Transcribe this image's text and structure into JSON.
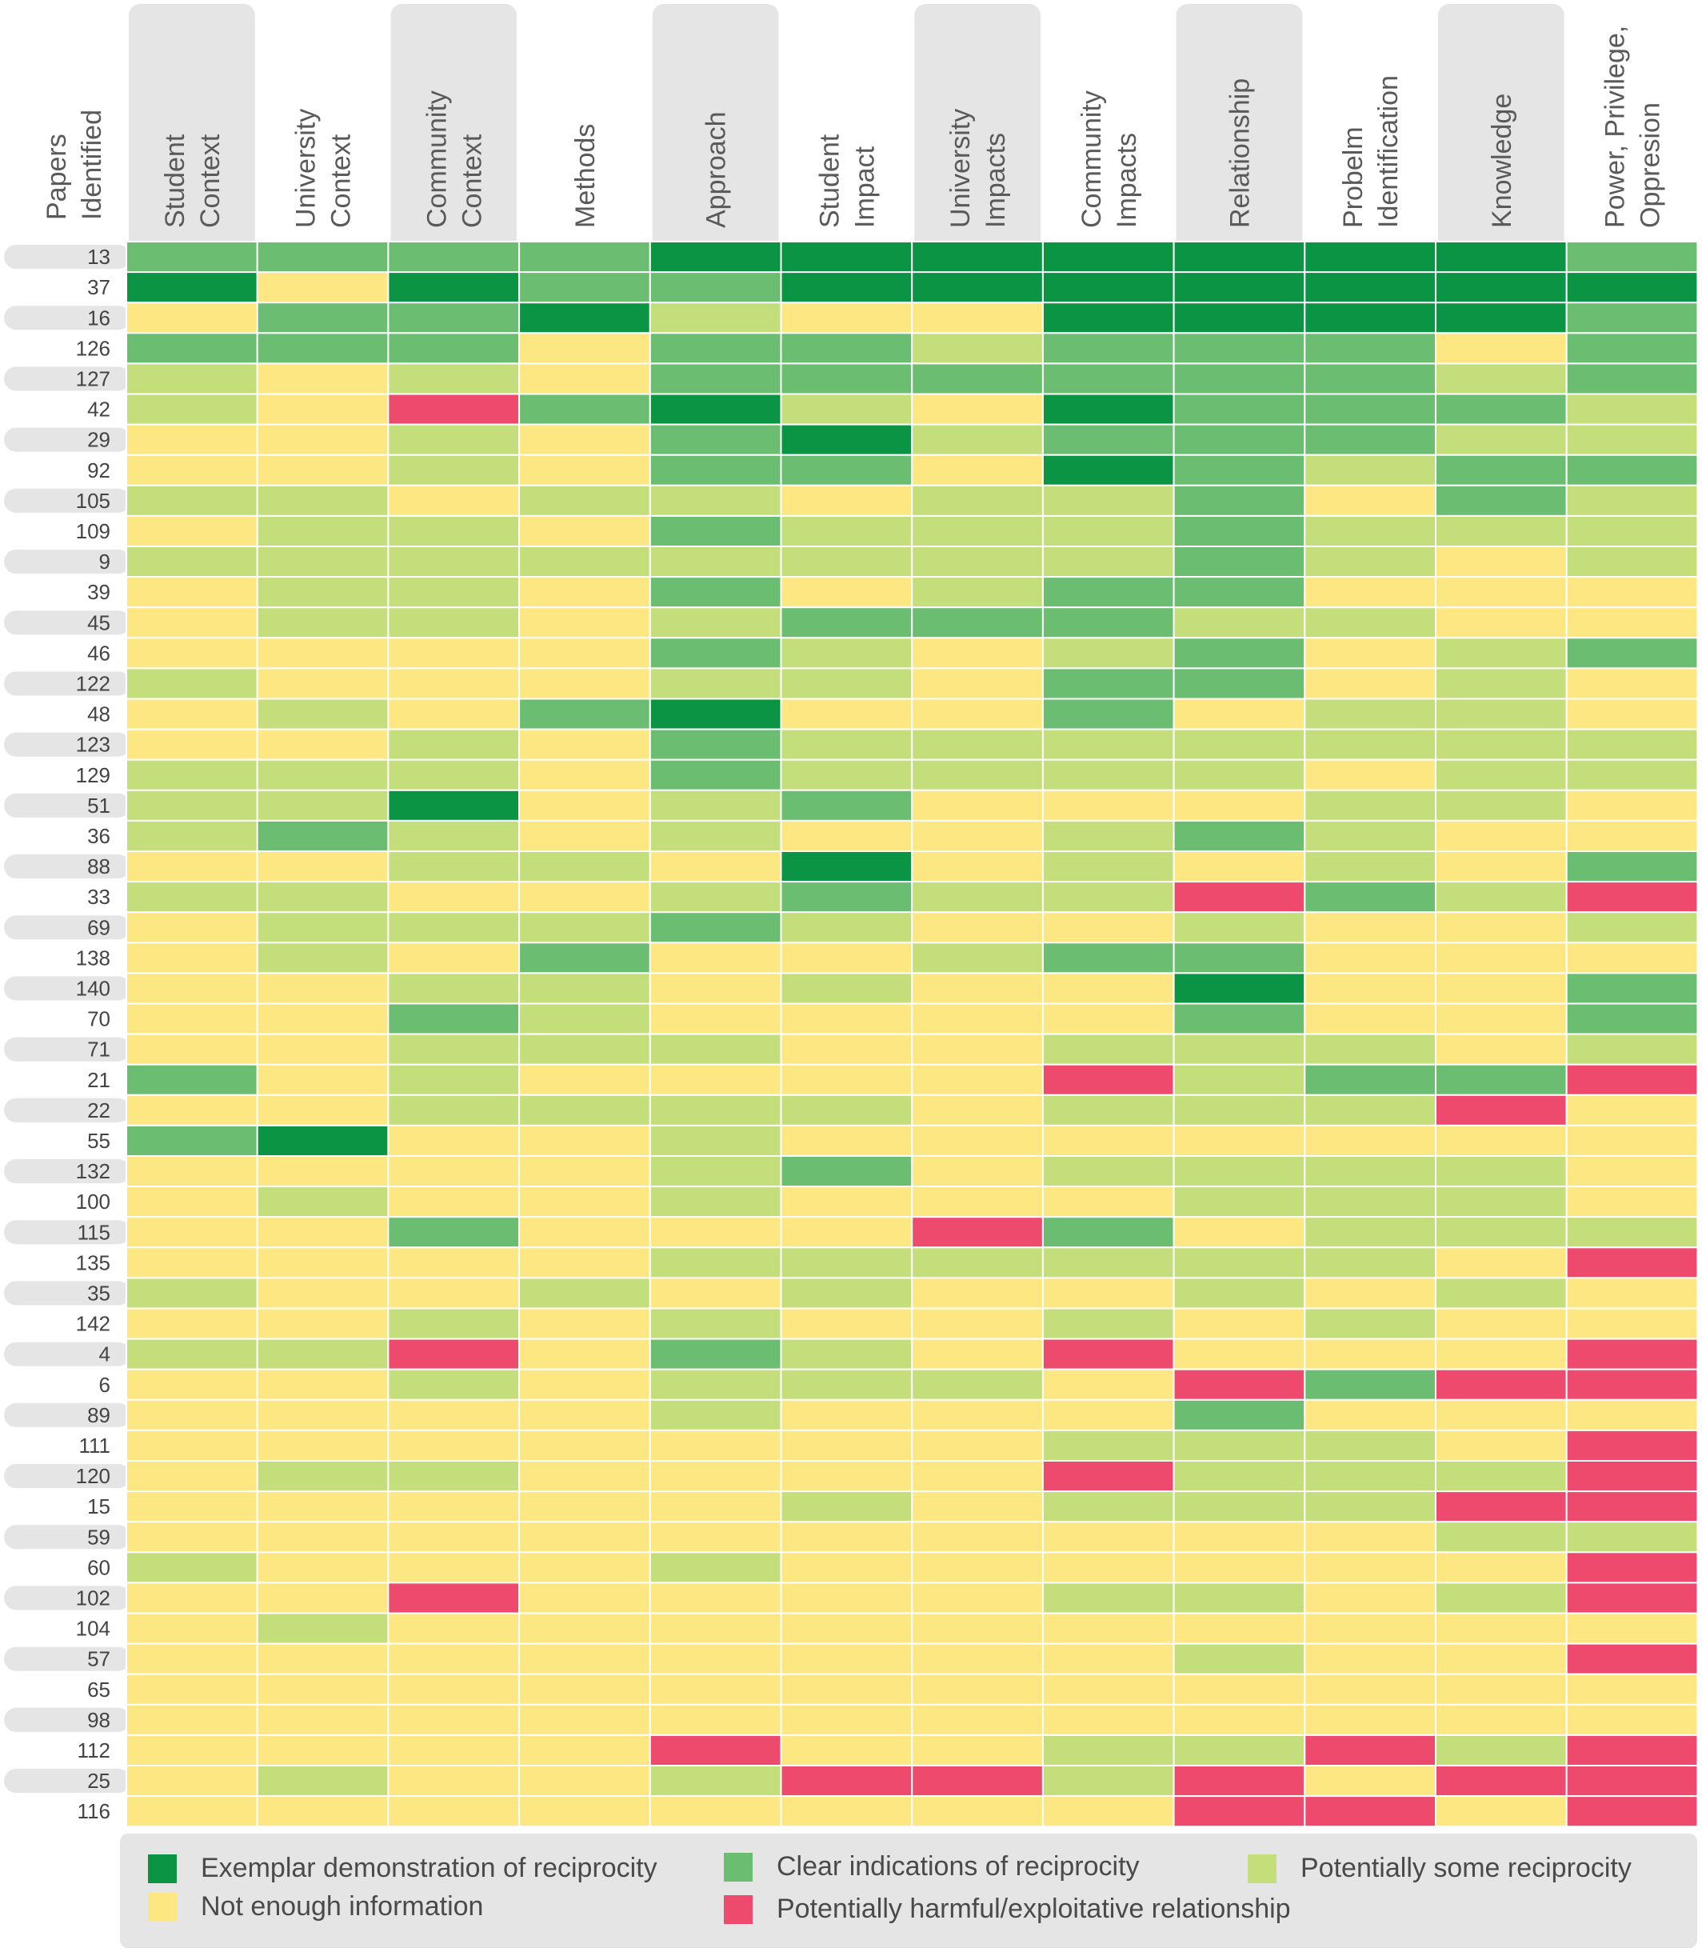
{
  "chart_data": {
    "type": "heatmap",
    "row_header": [
      "Papers",
      "Identified"
    ],
    "columns": [
      {
        "lines": [
          "Student",
          "Context"
        ],
        "tab": true
      },
      {
        "lines": [
          "University",
          "Context"
        ],
        "tab": false
      },
      {
        "lines": [
          "Community",
          "Context"
        ],
        "tab": true
      },
      {
        "lines": [
          "Methods"
        ],
        "tab": false
      },
      {
        "lines": [
          "Approach"
        ],
        "tab": true
      },
      {
        "lines": [
          "Student",
          "Impact"
        ],
        "tab": false
      },
      {
        "lines": [
          "University",
          "Impacts"
        ],
        "tab": true
      },
      {
        "lines": [
          "Community",
          "Impacts"
        ],
        "tab": false
      },
      {
        "lines": [
          "Relationship"
        ],
        "tab": true
      },
      {
        "lines": [
          "Probelm",
          "Identification"
        ],
        "tab": false
      },
      {
        "lines": [
          "Knowledge"
        ],
        "tab": true
      },
      {
        "lines": [
          "Power, Privilege,",
          "Oppresion"
        ],
        "tab": false
      }
    ],
    "rows": [
      "13",
      "37",
      "16",
      "126",
      "127",
      "42",
      "29",
      "92",
      "105",
      "109",
      "9",
      "39",
      "45",
      "46",
      "122",
      "48",
      "123",
      "129",
      "51",
      "36",
      "88",
      "33",
      "69",
      "138",
      "140",
      "70",
      "71",
      "21",
      "22",
      "55",
      "132",
      "100",
      "115",
      "135",
      "35",
      "142",
      "4",
      "6",
      "89",
      "111",
      "120",
      "15",
      "59",
      "60",
      "102",
      "104",
      "57",
      "65",
      "98",
      "112",
      "25",
      "116"
    ],
    "levels": {
      "E": {
        "label": "Exemplar demonstration of reciprocity",
        "color": "#0a9444"
      },
      "C": {
        "label": "Clear indications of reciprocity",
        "color": "#6bbd72"
      },
      "P": {
        "label": "Potentially some reciprocity",
        "color": "#c4de7c"
      },
      "N": {
        "label": "Not enough information",
        "color": "#fde783"
      },
      "H": {
        "label": "Potentially harmful/exploitative relationship",
        "color": "#ee4a6d"
      }
    },
    "values": [
      [
        "C",
        "C",
        "C",
        "C",
        "E",
        "E",
        "E",
        "E",
        "E",
        "E",
        "E",
        "C"
      ],
      [
        "E",
        "N",
        "E",
        "C",
        "C",
        "E",
        "E",
        "E",
        "E",
        "E",
        "E",
        "E"
      ],
      [
        "N",
        "C",
        "C",
        "E",
        "P",
        "N",
        "N",
        "E",
        "E",
        "E",
        "E",
        "C"
      ],
      [
        "C",
        "C",
        "C",
        "N",
        "C",
        "C",
        "P",
        "C",
        "C",
        "C",
        "N",
        "C"
      ],
      [
        "P",
        "N",
        "P",
        "N",
        "C",
        "C",
        "C",
        "C",
        "C",
        "C",
        "P",
        "C"
      ],
      [
        "P",
        "N",
        "H",
        "C",
        "E",
        "P",
        "N",
        "E",
        "C",
        "C",
        "C",
        "P"
      ],
      [
        "N",
        "N",
        "P",
        "N",
        "C",
        "E",
        "P",
        "C",
        "C",
        "C",
        "P",
        "P"
      ],
      [
        "N",
        "N",
        "P",
        "N",
        "C",
        "C",
        "N",
        "E",
        "C",
        "P",
        "C",
        "C"
      ],
      [
        "P",
        "P",
        "N",
        "P",
        "P",
        "N",
        "P",
        "P",
        "C",
        "N",
        "C",
        "P"
      ],
      [
        "N",
        "P",
        "P",
        "N",
        "C",
        "P",
        "P",
        "P",
        "C",
        "P",
        "P",
        "P"
      ],
      [
        "P",
        "P",
        "P",
        "P",
        "P",
        "P",
        "P",
        "P",
        "C",
        "P",
        "N",
        "P"
      ],
      [
        "N",
        "P",
        "P",
        "N",
        "C",
        "N",
        "P",
        "C",
        "C",
        "N",
        "N",
        "N"
      ],
      [
        "N",
        "P",
        "P",
        "N",
        "P",
        "C",
        "C",
        "C",
        "P",
        "P",
        "N",
        "N"
      ],
      [
        "N",
        "N",
        "N",
        "N",
        "C",
        "P",
        "N",
        "P",
        "C",
        "N",
        "P",
        "C"
      ],
      [
        "P",
        "N",
        "N",
        "N",
        "P",
        "P",
        "N",
        "C",
        "C",
        "N",
        "P",
        "N"
      ],
      [
        "N",
        "P",
        "N",
        "C",
        "E",
        "N",
        "N",
        "C",
        "N",
        "P",
        "P",
        "N"
      ],
      [
        "N",
        "N",
        "P",
        "N",
        "C",
        "P",
        "P",
        "P",
        "P",
        "P",
        "P",
        "P"
      ],
      [
        "P",
        "P",
        "P",
        "N",
        "C",
        "P",
        "P",
        "P",
        "P",
        "N",
        "P",
        "P"
      ],
      [
        "P",
        "P",
        "E",
        "N",
        "P",
        "C",
        "N",
        "N",
        "N",
        "P",
        "P",
        "N"
      ],
      [
        "P",
        "C",
        "P",
        "N",
        "P",
        "N",
        "N",
        "P",
        "C",
        "P",
        "N",
        "N"
      ],
      [
        "N",
        "N",
        "P",
        "P",
        "N",
        "E",
        "N",
        "P",
        "N",
        "P",
        "N",
        "C"
      ],
      [
        "P",
        "P",
        "N",
        "N",
        "P",
        "C",
        "P",
        "P",
        "H",
        "C",
        "P",
        "H"
      ],
      [
        "N",
        "P",
        "P",
        "P",
        "C",
        "P",
        "N",
        "N",
        "P",
        "N",
        "N",
        "P"
      ],
      [
        "N",
        "P",
        "N",
        "C",
        "N",
        "N",
        "P",
        "C",
        "C",
        "N",
        "N",
        "N"
      ],
      [
        "N",
        "N",
        "P",
        "P",
        "N",
        "P",
        "N",
        "N",
        "E",
        "N",
        "N",
        "C"
      ],
      [
        "N",
        "N",
        "C",
        "P",
        "N",
        "N",
        "N",
        "N",
        "C",
        "N",
        "N",
        "C"
      ],
      [
        "N",
        "N",
        "P",
        "P",
        "P",
        "N",
        "N",
        "P",
        "P",
        "P",
        "N",
        "P"
      ],
      [
        "C",
        "N",
        "P",
        "N",
        "N",
        "N",
        "N",
        "H",
        "P",
        "C",
        "C",
        "H"
      ],
      [
        "N",
        "N",
        "P",
        "P",
        "P",
        "P",
        "N",
        "P",
        "P",
        "P",
        "H",
        "N"
      ],
      [
        "C",
        "E",
        "N",
        "N",
        "P",
        "N",
        "N",
        "N",
        "N",
        "N",
        "N",
        "N"
      ],
      [
        "N",
        "N",
        "N",
        "N",
        "P",
        "C",
        "N",
        "P",
        "P",
        "P",
        "P",
        "N"
      ],
      [
        "N",
        "P",
        "N",
        "N",
        "P",
        "N",
        "N",
        "N",
        "P",
        "P",
        "P",
        "N"
      ],
      [
        "N",
        "N",
        "C",
        "N",
        "N",
        "N",
        "H",
        "C",
        "N",
        "P",
        "P",
        "P"
      ],
      [
        "N",
        "N",
        "N",
        "N",
        "P",
        "P",
        "P",
        "P",
        "P",
        "P",
        "N",
        "H"
      ],
      [
        "P",
        "N",
        "N",
        "P",
        "N",
        "P",
        "N",
        "N",
        "P",
        "N",
        "P",
        "N"
      ],
      [
        "N",
        "N",
        "P",
        "N",
        "P",
        "N",
        "N",
        "P",
        "N",
        "P",
        "N",
        "N"
      ],
      [
        "P",
        "P",
        "H",
        "N",
        "C",
        "P",
        "N",
        "H",
        "N",
        "N",
        "N",
        "H"
      ],
      [
        "N",
        "N",
        "P",
        "N",
        "P",
        "P",
        "P",
        "N",
        "H",
        "C",
        "H",
        "H"
      ],
      [
        "N",
        "N",
        "N",
        "N",
        "P",
        "N",
        "N",
        "N",
        "C",
        "N",
        "N",
        "N"
      ],
      [
        "N",
        "N",
        "N",
        "N",
        "N",
        "N",
        "N",
        "P",
        "P",
        "P",
        "N",
        "H"
      ],
      [
        "N",
        "P",
        "P",
        "N",
        "N",
        "N",
        "N",
        "H",
        "P",
        "P",
        "P",
        "H"
      ],
      [
        "N",
        "N",
        "N",
        "N",
        "N",
        "P",
        "N",
        "P",
        "P",
        "P",
        "H",
        "H"
      ],
      [
        "N",
        "N",
        "N",
        "N",
        "N",
        "N",
        "N",
        "N",
        "N",
        "N",
        "P",
        "P"
      ],
      [
        "P",
        "N",
        "N",
        "N",
        "P",
        "N",
        "N",
        "N",
        "N",
        "N",
        "N",
        "H"
      ],
      [
        "N",
        "N",
        "H",
        "N",
        "N",
        "N",
        "N",
        "P",
        "P",
        "N",
        "P",
        "H"
      ],
      [
        "N",
        "P",
        "N",
        "N",
        "N",
        "N",
        "N",
        "N",
        "N",
        "N",
        "N",
        "N"
      ],
      [
        "N",
        "N",
        "N",
        "N",
        "N",
        "N",
        "N",
        "N",
        "P",
        "N",
        "N",
        "H"
      ],
      [
        "N",
        "N",
        "N",
        "N",
        "N",
        "N",
        "N",
        "N",
        "N",
        "N",
        "N",
        "N"
      ],
      [
        "N",
        "N",
        "N",
        "N",
        "N",
        "N",
        "N",
        "N",
        "N",
        "N",
        "N",
        "N"
      ],
      [
        "N",
        "N",
        "N",
        "N",
        "H",
        "N",
        "N",
        "P",
        "P",
        "H",
        "P",
        "H"
      ],
      [
        "N",
        "P",
        "N",
        "N",
        "P",
        "H",
        "H",
        "P",
        "H",
        "N",
        "H",
        "H"
      ],
      [
        "N",
        "N",
        "N",
        "N",
        "N",
        "N",
        "N",
        "N",
        "H",
        "H",
        "N",
        "H"
      ]
    ],
    "legend_order": [
      "E",
      "C",
      "P",
      "N",
      "H"
    ]
  }
}
